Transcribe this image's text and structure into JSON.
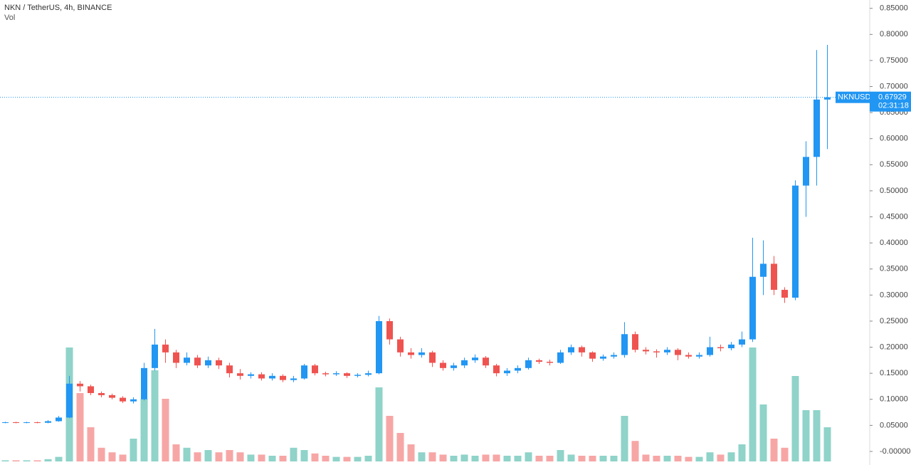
{
  "chart_data": {
    "type": "candlestick",
    "title": "NKN / TetherUS, 4h, BINANCE",
    "volume_label": "Vol",
    "symbol": "NKNUSDT",
    "last_price": 0.67929,
    "last_price_label": "0.67929",
    "countdown": "02:31:18",
    "ylim": [
      -0.026,
      0.866
    ],
    "yticks": [
      {
        "value": 0.85,
        "label": "0.85000"
      },
      {
        "value": 0.8,
        "label": "0.80000"
      },
      {
        "value": 0.75,
        "label": "0.75000"
      },
      {
        "value": 0.7,
        "label": "0.70000"
      },
      {
        "value": 0.65,
        "label": "0.65000"
      },
      {
        "value": 0.6,
        "label": "0.60000"
      },
      {
        "value": 0.55,
        "label": "0.55000"
      },
      {
        "value": 0.5,
        "label": "0.50000"
      },
      {
        "value": 0.45,
        "label": "0.45000"
      },
      {
        "value": 0.4,
        "label": "0.40000"
      },
      {
        "value": 0.35,
        "label": "0.35000"
      },
      {
        "value": 0.3,
        "label": "0.30000"
      },
      {
        "value": 0.25,
        "label": "0.25000"
      },
      {
        "value": 0.2,
        "label": "0.20000"
      },
      {
        "value": 0.15,
        "label": "0.15000"
      },
      {
        "value": 0.1,
        "label": "0.10000"
      },
      {
        "value": 0.05,
        "label": "0.05000"
      },
      {
        "value": 0,
        "label": "-0.00000"
      }
    ],
    "vlim": [
      0,
      100
    ],
    "up_color": "#2196f3",
    "down_color": "#ef5350",
    "up_volume_color": "#8fd3c9",
    "down_volume_color": "#f7a6a6",
    "open": [
      0.055,
      0.056,
      0.055,
      0.056,
      0.055,
      0.058,
      0.065,
      0.13,
      0.125,
      0.112,
      0.108,
      0.103,
      0.096,
      0.1,
      0.16,
      0.205,
      0.19,
      0.17,
      0.18,
      0.165,
      0.175,
      0.165,
      0.15,
      0.145,
      0.148,
      0.14,
      0.145,
      0.137,
      0.14,
      0.165,
      0.15,
      0.148,
      0.15,
      0.145,
      0.147,
      0.15,
      0.25,
      0.215,
      0.19,
      0.185,
      0.19,
      0.17,
      0.16,
      0.165,
      0.175,
      0.18,
      0.165,
      0.15,
      0.155,
      0.16,
      0.175,
      0.172,
      0.17,
      0.19,
      0.2,
      0.19,
      0.178,
      0.182,
      0.185,
      0.225,
      0.195,
      0.192,
      0.19,
      0.195,
      0.185,
      0.182,
      0.185,
      0.2,
      0.198,
      0.205,
      0.215,
      0.335,
      0.36,
      0.31,
      0.295,
      0.51,
      0.565,
      0.675
    ],
    "high": [
      0.057,
      0.057,
      0.057,
      0.057,
      0.06,
      0.068,
      0.145,
      0.135,
      0.128,
      0.115,
      0.111,
      0.106,
      0.104,
      0.17,
      0.235,
      0.215,
      0.195,
      0.19,
      0.185,
      0.182,
      0.18,
      0.17,
      0.158,
      0.152,
      0.152,
      0.15,
      0.148,
      0.145,
      0.168,
      0.168,
      0.153,
      0.154,
      0.152,
      0.15,
      0.155,
      0.26,
      0.255,
      0.22,
      0.198,
      0.198,
      0.193,
      0.175,
      0.17,
      0.18,
      0.186,
      0.183,
      0.168,
      0.16,
      0.165,
      0.18,
      0.178,
      0.176,
      0.195,
      0.205,
      0.203,
      0.192,
      0.186,
      0.19,
      0.248,
      0.23,
      0.2,
      0.196,
      0.2,
      0.198,
      0.19,
      0.19,
      0.22,
      0.205,
      0.21,
      0.23,
      0.41,
      0.405,
      0.375,
      0.315,
      0.52,
      0.595,
      0.77,
      0.78
    ],
    "low": [
      0.054,
      0.054,
      0.054,
      0.054,
      0.054,
      0.057,
      0.064,
      0.115,
      0.108,
      0.104,
      0.1,
      0.093,
      0.092,
      0.098,
      0.155,
      0.17,
      0.16,
      0.165,
      0.16,
      0.16,
      0.158,
      0.142,
      0.138,
      0.14,
      0.136,
      0.136,
      0.133,
      0.133,
      0.138,
      0.146,
      0.144,
      0.145,
      0.141,
      0.142,
      0.144,
      0.148,
      0.205,
      0.182,
      0.178,
      0.18,
      0.162,
      0.155,
      0.155,
      0.16,
      0.17,
      0.16,
      0.144,
      0.145,
      0.15,
      0.157,
      0.168,
      0.165,
      0.168,
      0.185,
      0.182,
      0.172,
      0.174,
      0.178,
      0.18,
      0.19,
      0.186,
      0.18,
      0.185,
      0.175,
      0.178,
      0.178,
      0.182,
      0.192,
      0.194,
      0.2,
      0.21,
      0.3,
      0.3,
      0.285,
      0.29,
      0.45,
      0.51,
      0.58
    ],
    "close": [
      0.056,
      0.055,
      0.056,
      0.055,
      0.058,
      0.065,
      0.13,
      0.125,
      0.112,
      0.108,
      0.103,
      0.096,
      0.1,
      0.16,
      0.205,
      0.19,
      0.17,
      0.18,
      0.165,
      0.175,
      0.165,
      0.15,
      0.145,
      0.148,
      0.14,
      0.145,
      0.137,
      0.14,
      0.165,
      0.15,
      0.148,
      0.15,
      0.145,
      0.147,
      0.15,
      0.25,
      0.215,
      0.19,
      0.185,
      0.19,
      0.17,
      0.16,
      0.165,
      0.175,
      0.18,
      0.165,
      0.15,
      0.155,
      0.16,
      0.175,
      0.172,
      0.17,
      0.19,
      0.2,
      0.19,
      0.178,
      0.182,
      0.185,
      0.225,
      0.195,
      0.192,
      0.19,
      0.195,
      0.185,
      0.182,
      0.185,
      0.2,
      0.198,
      0.205,
      0.215,
      0.335,
      0.36,
      0.31,
      0.295,
      0.51,
      0.565,
      0.675,
      0.67929
    ],
    "volume": [
      1,
      1,
      1,
      1,
      2,
      4,
      100,
      60,
      30,
      12,
      8,
      6,
      20,
      55,
      80,
      55,
      15,
      12,
      8,
      10,
      8,
      10,
      8,
      6,
      6,
      5,
      5,
      12,
      10,
      7,
      5,
      4,
      4,
      4,
      5,
      65,
      40,
      25,
      15,
      8,
      8,
      6,
      5,
      6,
      5,
      6,
      6,
      5,
      5,
      8,
      5,
      5,
      10,
      6,
      5,
      5,
      5,
      5,
      40,
      18,
      6,
      5,
      5,
      5,
      4,
      4,
      8,
      6,
      8,
      15,
      100,
      50,
      20,
      12,
      75,
      45,
      45,
      30
    ]
  }
}
